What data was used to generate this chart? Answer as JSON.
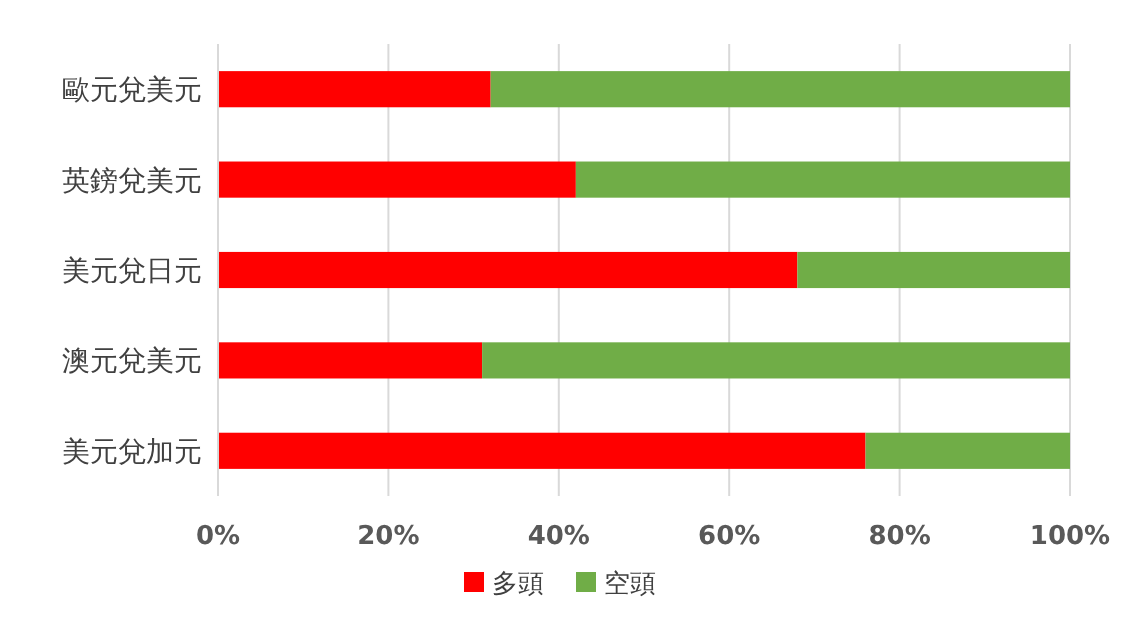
{
  "chart_data": {
    "type": "bar",
    "orientation": "horizontal",
    "stacked": true,
    "categories": [
      "歐元兌美元",
      "英鎊兌美元",
      "美元兌日元",
      "澳元兌美元",
      "美元兌加元"
    ],
    "series": [
      {
        "name": "多頭",
        "color": "#ff0000",
        "values": [
          32,
          42,
          68,
          31,
          76
        ]
      },
      {
        "name": "空頭",
        "color": "#70ad47",
        "values": [
          68,
          58,
          32,
          69,
          24
        ]
      }
    ],
    "xlim": [
      0,
      100
    ],
    "xticks": [
      {
        "value": 0,
        "label": "0%"
      },
      {
        "value": 20,
        "label": "20%"
      },
      {
        "value": 40,
        "label": "40%"
      },
      {
        "value": 60,
        "label": "60%"
      },
      {
        "value": 80,
        "label": "80%"
      },
      {
        "value": 100,
        "label": "100%"
      }
    ],
    "grid": "x",
    "legend": "bottom"
  }
}
